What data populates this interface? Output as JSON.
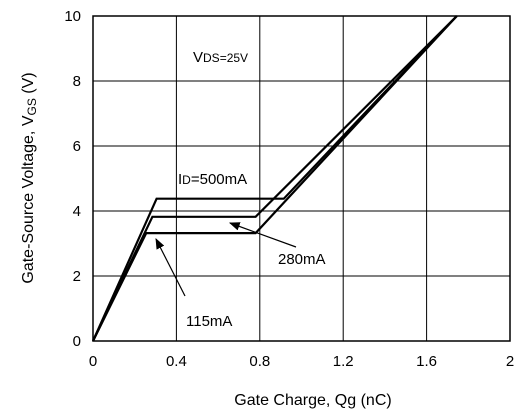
{
  "chart_data": {
    "type": "line",
    "xlabel": "Gate Charge, Qg (nC)",
    "ylabel": {
      "main": "Gate-Source Voltage, V",
      "sub": "GS",
      "unit": " (V)"
    },
    "xlim": [
      0,
      2
    ],
    "ylim": [
      0,
      10
    ],
    "xticks": [
      {
        "value": 0,
        "label": "0"
      },
      {
        "value": 0.4,
        "label": "0.4"
      },
      {
        "value": 0.8,
        "label": "0.8"
      },
      {
        "value": 1.2,
        "label": "1.2"
      },
      {
        "value": 1.6,
        "label": "1.6"
      },
      {
        "value": 2,
        "label": "2"
      }
    ],
    "yticks": [
      {
        "value": 0,
        "label": "0"
      },
      {
        "value": 2,
        "label": "2"
      },
      {
        "value": 4,
        "label": "4"
      },
      {
        "value": 6,
        "label": "6"
      },
      {
        "value": 8,
        "label": "8"
      },
      {
        "value": 10,
        "label": "10"
      }
    ],
    "grid": true,
    "condition": {
      "prefix": "V",
      "sub": "DS",
      "value": "=25V"
    },
    "series": [
      {
        "name": "I",
        "name_sub": "D",
        "name_suffix": "=500mA",
        "x": [
          0,
          0.305,
          0.915,
          1.745
        ],
        "y": [
          0,
          4.38,
          4.38,
          10
        ]
      },
      {
        "name": "280mA",
        "x": [
          0,
          0.285,
          0.78,
          1.745
        ],
        "y": [
          0,
          3.82,
          3.82,
          10
        ]
      },
      {
        "name": "115mA",
        "x": [
          0,
          0.255,
          0.78,
          1.745
        ],
        "y": [
          0,
          3.32,
          3.32,
          10
        ]
      }
    ]
  }
}
